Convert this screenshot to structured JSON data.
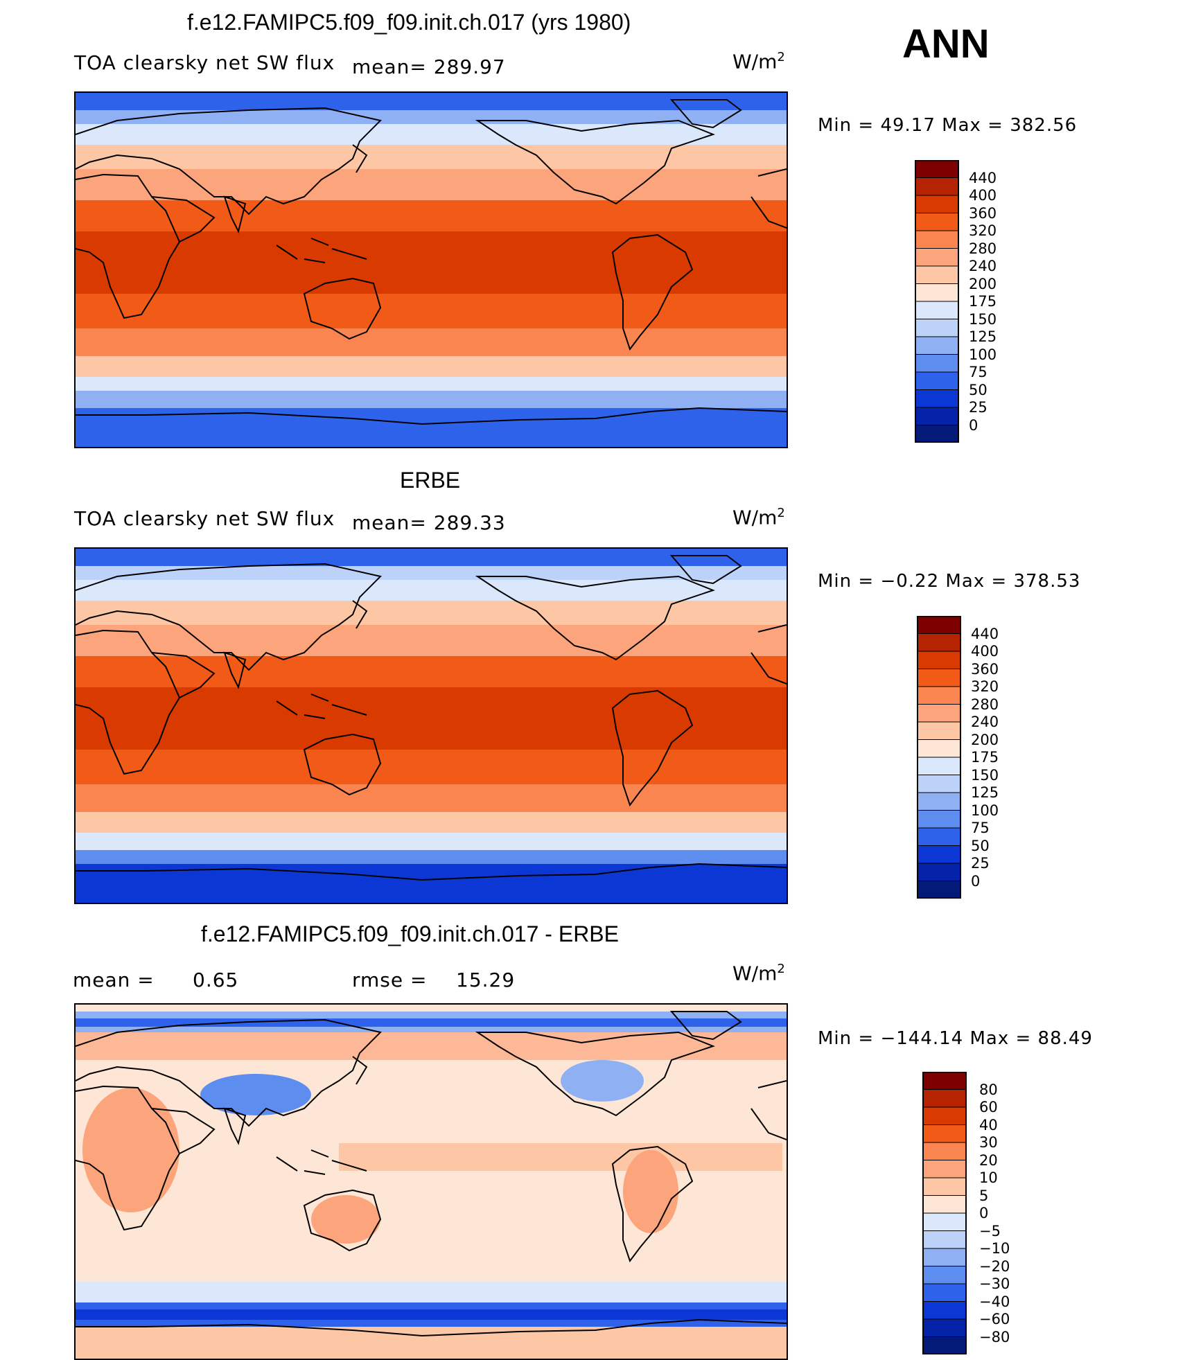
{
  "season": "ANN",
  "panels": [
    {
      "title": "f.e12.FAMIPC5.f09_f09.init.ch.017 (yrs 1980)",
      "subtitle": "TOA clearsky net SW flux",
      "mean_text": "mean= 289.97",
      "units_base": "W/m",
      "units_exp": "2",
      "minmax": "Min =   49.17 Max = 382.56",
      "colorbar": {
        "labels": [
          "440",
          "400",
          "360",
          "320",
          "280",
          "240",
          "200",
          "175",
          "150",
          "125",
          "100",
          "75",
          "50",
          "25",
          "0"
        ],
        "colors": [
          "#7f0000",
          "#b52300",
          "#d93a00",
          "#f25a18",
          "#fa8550",
          "#fca57c",
          "#fdc7a6",
          "#fde6d5",
          "#dbe8fb",
          "#bcd2f8",
          "#8fb1f3",
          "#5e8df0",
          "#2f62ea",
          "#0b38d4",
          "#0423a8",
          "#031a78"
        ]
      }
    },
    {
      "title": "ERBE",
      "subtitle": "TOA clearsky net SW flux",
      "mean_text": "mean= 289.33",
      "units_base": "W/m",
      "units_exp": "2",
      "minmax": "Min =  −0.22 Max = 378.53",
      "colorbar": {
        "labels": [
          "440",
          "400",
          "360",
          "320",
          "280",
          "240",
          "200",
          "175",
          "150",
          "125",
          "100",
          "75",
          "50",
          "25",
          "0"
        ],
        "colors": [
          "#7f0000",
          "#b52300",
          "#d93a00",
          "#f25a18",
          "#fa8550",
          "#fca57c",
          "#fdc7a6",
          "#fde6d5",
          "#dbe8fb",
          "#bcd2f8",
          "#8fb1f3",
          "#5e8df0",
          "#2f62ea",
          "#0b38d4",
          "#0423a8",
          "#031a78"
        ]
      }
    },
    {
      "title": "f.e12.FAMIPC5.f09_f09.init.ch.017 - ERBE",
      "mean_label": "mean =",
      "mean_value": "0.65",
      "rmse_label": "rmse =",
      "rmse_value": "15.29",
      "units_base": "W/m",
      "units_exp": "2",
      "minmax": "Min = −144.14 Max =   88.49",
      "colorbar": {
        "labels": [
          "80",
          "60",
          "40",
          "30",
          "20",
          "10",
          "5",
          "0",
          "−5",
          "−10",
          "−20",
          "−30",
          "−40",
          "−60",
          "−80"
        ],
        "colors": [
          "#7f0000",
          "#b52300",
          "#d93a00",
          "#f25a18",
          "#fa8550",
          "#fca57c",
          "#fdc7a6",
          "#fde6d5",
          "#dbe8fb",
          "#bcd2f8",
          "#8fb1f3",
          "#5e8df0",
          "#2f62ea",
          "#0b38d4",
          "#0423a8",
          "#031a78"
        ]
      }
    }
  ],
  "palette": {
    "ocean_tropic": "#d93a00",
    "ocean_subtropic": "#f25a18",
    "ocean_mid": "#fa8550",
    "ocean_sub": "#fca57c",
    "ocean_high": "#fdc7a6",
    "ice_edge": "#dbe8fb",
    "sea_ice": "#8fb1f3",
    "polar": "#2f62ea",
    "land": "#f4784a",
    "diff_base": "#fde6d5",
    "diff_pos": "#fca57c",
    "diff_neg": "#5e8df0"
  }
}
